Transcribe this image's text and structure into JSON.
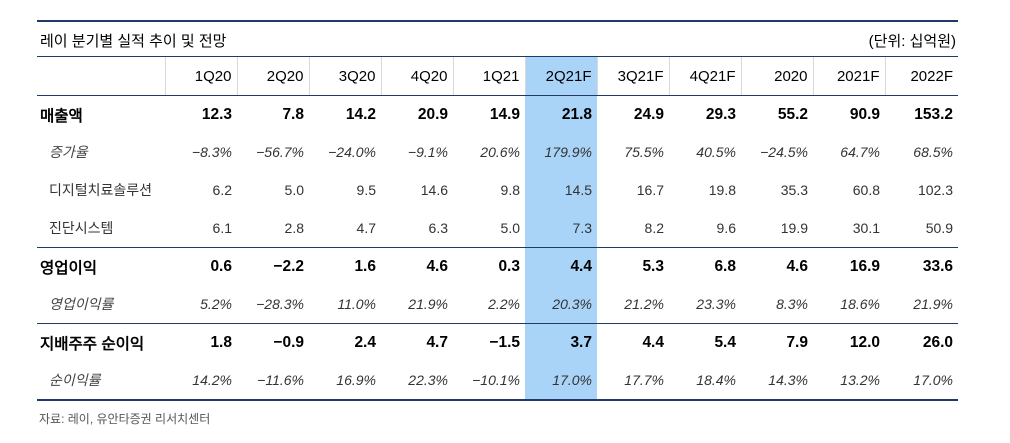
{
  "title": "레이 분기별 실적 추이 및 전망",
  "unit": "(단위: 십억원)",
  "columns": [
    "1Q20",
    "2Q20",
    "3Q20",
    "4Q20",
    "1Q21",
    "2Q21F",
    "3Q21F",
    "4Q21F",
    "2020",
    "2021F",
    "2022F"
  ],
  "rows": [
    {
      "label": "매출액",
      "values": [
        "12.3",
        "7.8",
        "14.2",
        "20.9",
        "14.9",
        "21.8",
        "24.9",
        "29.3",
        "55.2",
        "90.9",
        "153.2"
      ]
    },
    {
      "label": "증가율",
      "values": [
        "−8.3%",
        "−56.7%",
        "−24.0%",
        "−9.1%",
        "20.6%",
        "179.9%",
        "75.5%",
        "40.5%",
        "−24.5%",
        "64.7%",
        "68.5%"
      ]
    },
    {
      "label": "디지털치료솔루션",
      "values": [
        "6.2",
        "5.0",
        "9.5",
        "14.6",
        "9.8",
        "14.5",
        "16.7",
        "19.8",
        "35.3",
        "60.8",
        "102.3"
      ]
    },
    {
      "label": "진단시스템",
      "values": [
        "6.1",
        "2.8",
        "4.7",
        "6.3",
        "5.0",
        "7.3",
        "8.2",
        "9.6",
        "19.9",
        "30.1",
        "50.9"
      ]
    },
    {
      "label": "영업이익",
      "values": [
        "0.6",
        "−2.2",
        "1.6",
        "4.6",
        "0.3",
        "4.4",
        "5.3",
        "6.8",
        "4.6",
        "16.9",
        "33.6"
      ]
    },
    {
      "label": "영업이익률",
      "values": [
        "5.2%",
        "−28.3%",
        "11.0%",
        "21.9%",
        "2.2%",
        "20.3%",
        "21.2%",
        "23.3%",
        "8.3%",
        "18.6%",
        "21.9%"
      ]
    },
    {
      "label": "지배주주 순이익",
      "values": [
        "1.8",
        "−0.9",
        "2.4",
        "4.7",
        "−1.5",
        "3.7",
        "4.4",
        "5.4",
        "7.9",
        "12.0",
        "26.0"
      ]
    },
    {
      "label": "순이익률",
      "values": [
        "14.2%",
        "−11.6%",
        "16.9%",
        "22.3%",
        "−10.1%",
        "17.0%",
        "17.7%",
        "18.4%",
        "14.3%",
        "13.2%",
        "17.0%"
      ]
    }
  ],
  "source": "자료: 레이, 유안타증권 리서치센터",
  "colors": {
    "highlight": "#a9d3f7",
    "rule": "#1f3a68"
  }
}
